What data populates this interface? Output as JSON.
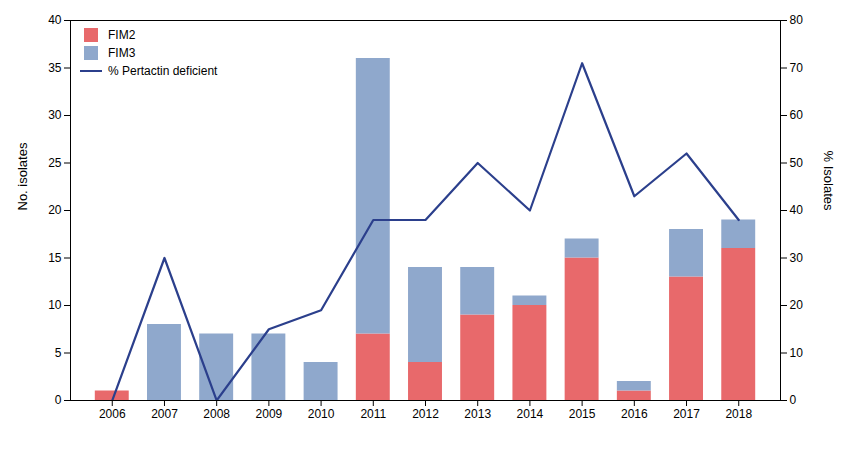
{
  "chart_data": {
    "type": "bar",
    "x": [
      2006,
      2007,
      2008,
      2009,
      2010,
      2011,
      2012,
      2013,
      2014,
      2015,
      2016,
      2017,
      2018
    ],
    "xlim": [
      2005.2,
      2018.8
    ],
    "xticks": [
      2006,
      2007,
      2008,
      2009,
      2010,
      2011,
      2012,
      2013,
      2014,
      2015,
      2016,
      2017,
      2018
    ],
    "ylabel": "No. isolates",
    "ylim": [
      0,
      40
    ],
    "yticks": [
      0,
      5,
      10,
      15,
      20,
      25,
      30,
      35,
      40
    ],
    "y2label": "% Isolates",
    "y2lim": [
      0,
      80
    ],
    "y2ticks": [
      0,
      10,
      20,
      30,
      40,
      50,
      60,
      70,
      80
    ],
    "stacked": true,
    "grid": false,
    "legend": "upper left",
    "series": [
      {
        "name": "FIM2",
        "type": "bar",
        "color": "#E8696B",
        "values": [
          1,
          0,
          0,
          0,
          0,
          7,
          4,
          9,
          10,
          15,
          1,
          13,
          16
        ]
      },
      {
        "name": "FIM3",
        "type": "bar",
        "color": "#8FA8CC",
        "values": [
          0,
          8,
          7,
          7,
          4,
          29,
          10,
          5,
          1,
          2,
          1,
          5,
          3
        ]
      },
      {
        "name": "% Pertactin deficient",
        "type": "line",
        "axis": "y2",
        "color": "#2B3F8C",
        "values": [
          0,
          30,
          0,
          15,
          19,
          38,
          38,
          50,
          40,
          71,
          43,
          52,
          38
        ]
      }
    ]
  }
}
